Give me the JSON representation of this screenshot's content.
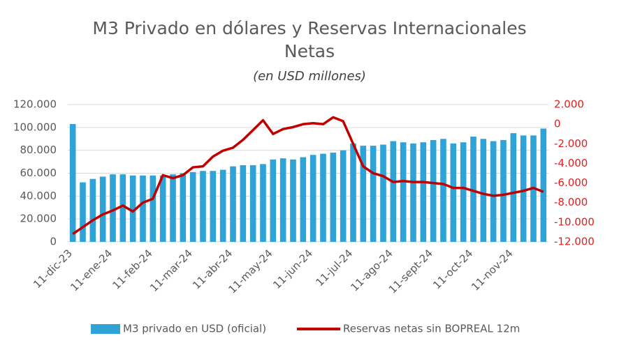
{
  "chart_data": {
    "type": "bar",
    "title": "M3 Privado en dólares y Reservas Internacionales",
    "title_line2": "Netas",
    "subtitle": "(en USD millones)",
    "categories": [
      "11-dic-23",
      null,
      null,
      null,
      "11-ene-24",
      null,
      null,
      null,
      "11-feb-24",
      null,
      null,
      null,
      "11-mar-24",
      null,
      null,
      null,
      "11-abr-24",
      null,
      null,
      null,
      "11-may-24",
      null,
      null,
      null,
      "11-jun-24",
      null,
      null,
      null,
      "11-jul-24",
      null,
      null,
      null,
      "11-ago-24",
      null,
      null,
      null,
      "11-sept-24",
      null,
      null,
      null,
      "11-oct-24",
      null,
      null,
      null,
      "11-nov-24",
      null,
      null,
      null
    ],
    "series": [
      {
        "name": "M3 privado en USD (oficial)",
        "type": "bar",
        "color": "#2fa3d6",
        "values": [
          103000,
          52000,
          55000,
          57000,
          59000,
          59000,
          58000,
          58000,
          58000,
          58000,
          59000,
          60000,
          61000,
          62000,
          62000,
          63000,
          66000,
          67000,
          67000,
          68000,
          72000,
          73000,
          72000,
          74000,
          76000,
          77000,
          78000,
          80000,
          86000,
          84000,
          84000,
          85000,
          88000,
          87000,
          86000,
          87000,
          89000,
          90000,
          86000,
          87000,
          92000,
          90000,
          88000,
          89000,
          95000,
          93000,
          93000,
          99000
        ]
      },
      {
        "name": "Reservas netas sin BOPREAL 12m",
        "type": "line",
        "color": "#c00000",
        "axis": "y2",
        "values": [
          -11200,
          -10500,
          -9800,
          -9200,
          -8800,
          -8300,
          -8900,
          -8000,
          -7600,
          -5200,
          -5500,
          -5200,
          -4400,
          -4300,
          -3300,
          -2700,
          -2400,
          -1600,
          -600,
          400,
          -1000,
          -500,
          -300,
          0,
          100,
          0,
          700,
          300,
          -2000,
          -4300,
          -5000,
          -5300,
          -5900,
          -5800,
          -5900,
          -5900,
          -6000,
          -6100,
          -6500,
          -6500,
          -6800,
          -7100,
          -7300,
          -7200,
          -7000,
          -6800,
          -6500,
          -6900
        ]
      }
    ],
    "ylim": [
      0,
      120000
    ],
    "yticks": [
      0,
      {
        "value": 20000,
        "label": "20.000"
      },
      {
        "value": 40000,
        "label": "40.000"
      },
      {
        "value": 60000,
        "label": "60.000"
      },
      {
        "value": 80000,
        "label": "80.000"
      },
      {
        "value": 100000,
        "label": "100.000"
      },
      {
        "value": 120000,
        "label": "120.000"
      }
    ],
    "y2lim": [
      -12000,
      2000
    ],
    "y2ticks": [
      {
        "value": -12000,
        "label": "-12.000"
      },
      {
        "value": -10000,
        "label": "-10.000"
      },
      {
        "value": -8000,
        "label": "-8.000"
      },
      {
        "value": -6000,
        "label": "-6.000"
      },
      {
        "value": -4000,
        "label": "-4.000"
      },
      {
        "value": -2000,
        "label": "-2.000"
      },
      0,
      {
        "value": 2000,
        "label": "2.000"
      }
    ],
    "y2_color": "#e02020",
    "grid": true,
    "legend": "bottom"
  }
}
